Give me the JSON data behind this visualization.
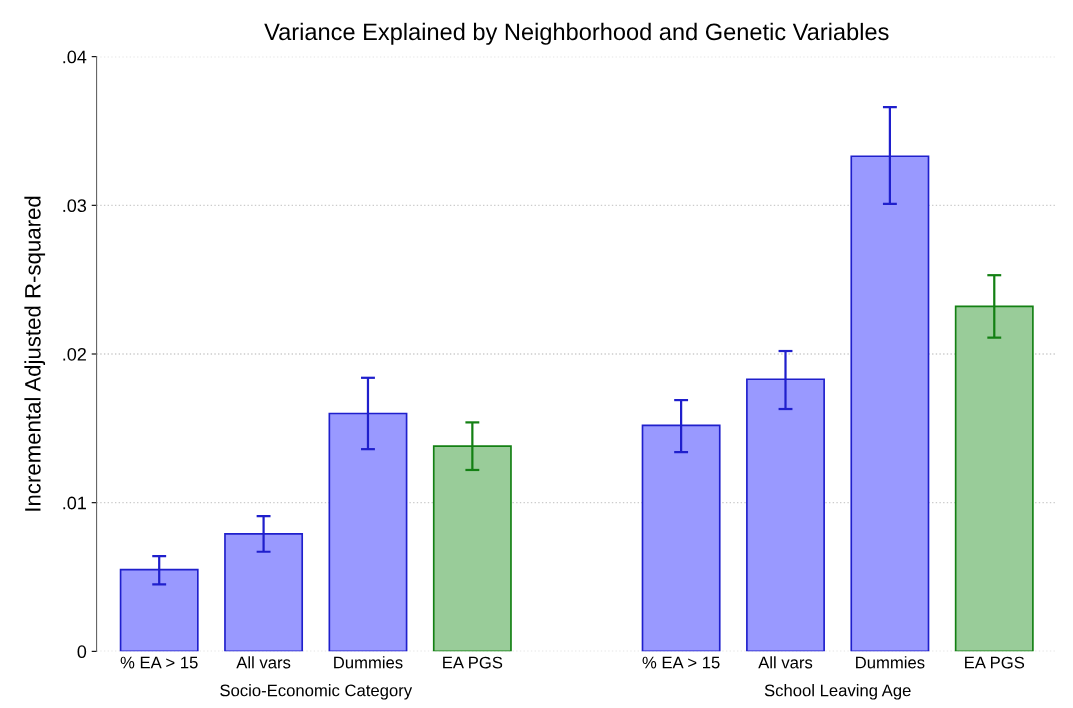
{
  "chart_data": {
    "type": "bar",
    "title": "Variance Explained by Neighborhood and Genetic Variables",
    "ylabel": "Incremental Adjusted R-squared",
    "categories": [
      "% EA > 15",
      "All vars",
      "Dummies",
      "EA PGS",
      null,
      "% EA > 15",
      "All vars",
      "Dummies",
      "EA PGS"
    ],
    "values": [
      0.0055,
      0.0079,
      0.016,
      0.0138,
      null,
      0.0152,
      0.0183,
      0.0333,
      0.0232
    ],
    "errors": [
      [
        0.0045,
        0.0064
      ],
      [
        0.0067,
        0.0091
      ],
      [
        0.0136,
        0.0184
      ],
      [
        0.0122,
        0.0154
      ],
      null,
      [
        0.0134,
        0.0169
      ],
      [
        0.0163,
        0.0202
      ],
      [
        0.0301,
        0.0366
      ],
      [
        0.0211,
        0.0253
      ]
    ],
    "colors": [
      "#9999ff",
      "#9999ff",
      "#9999ff",
      "#99cc99",
      null,
      "#9999ff",
      "#9999ff",
      "#9999ff",
      "#99cc99"
    ],
    "annotations": [
      "Socio-Economic Category",
      "School Leaving Age"
    ],
    "ylim": [
      0,
      0.04
    ],
    "yticks": [
      {
        "value": 0,
        "label": "0"
      },
      {
        "value": 0.01,
        "label": ".01"
      },
      {
        "value": 0.02,
        "label": ".02"
      },
      {
        "value": 0.03,
        "label": ".03"
      },
      {
        "value": 0.04,
        "label": ".04"
      }
    ],
    "grid": "y",
    "line_style": "dotted",
    "legend": false
  }
}
